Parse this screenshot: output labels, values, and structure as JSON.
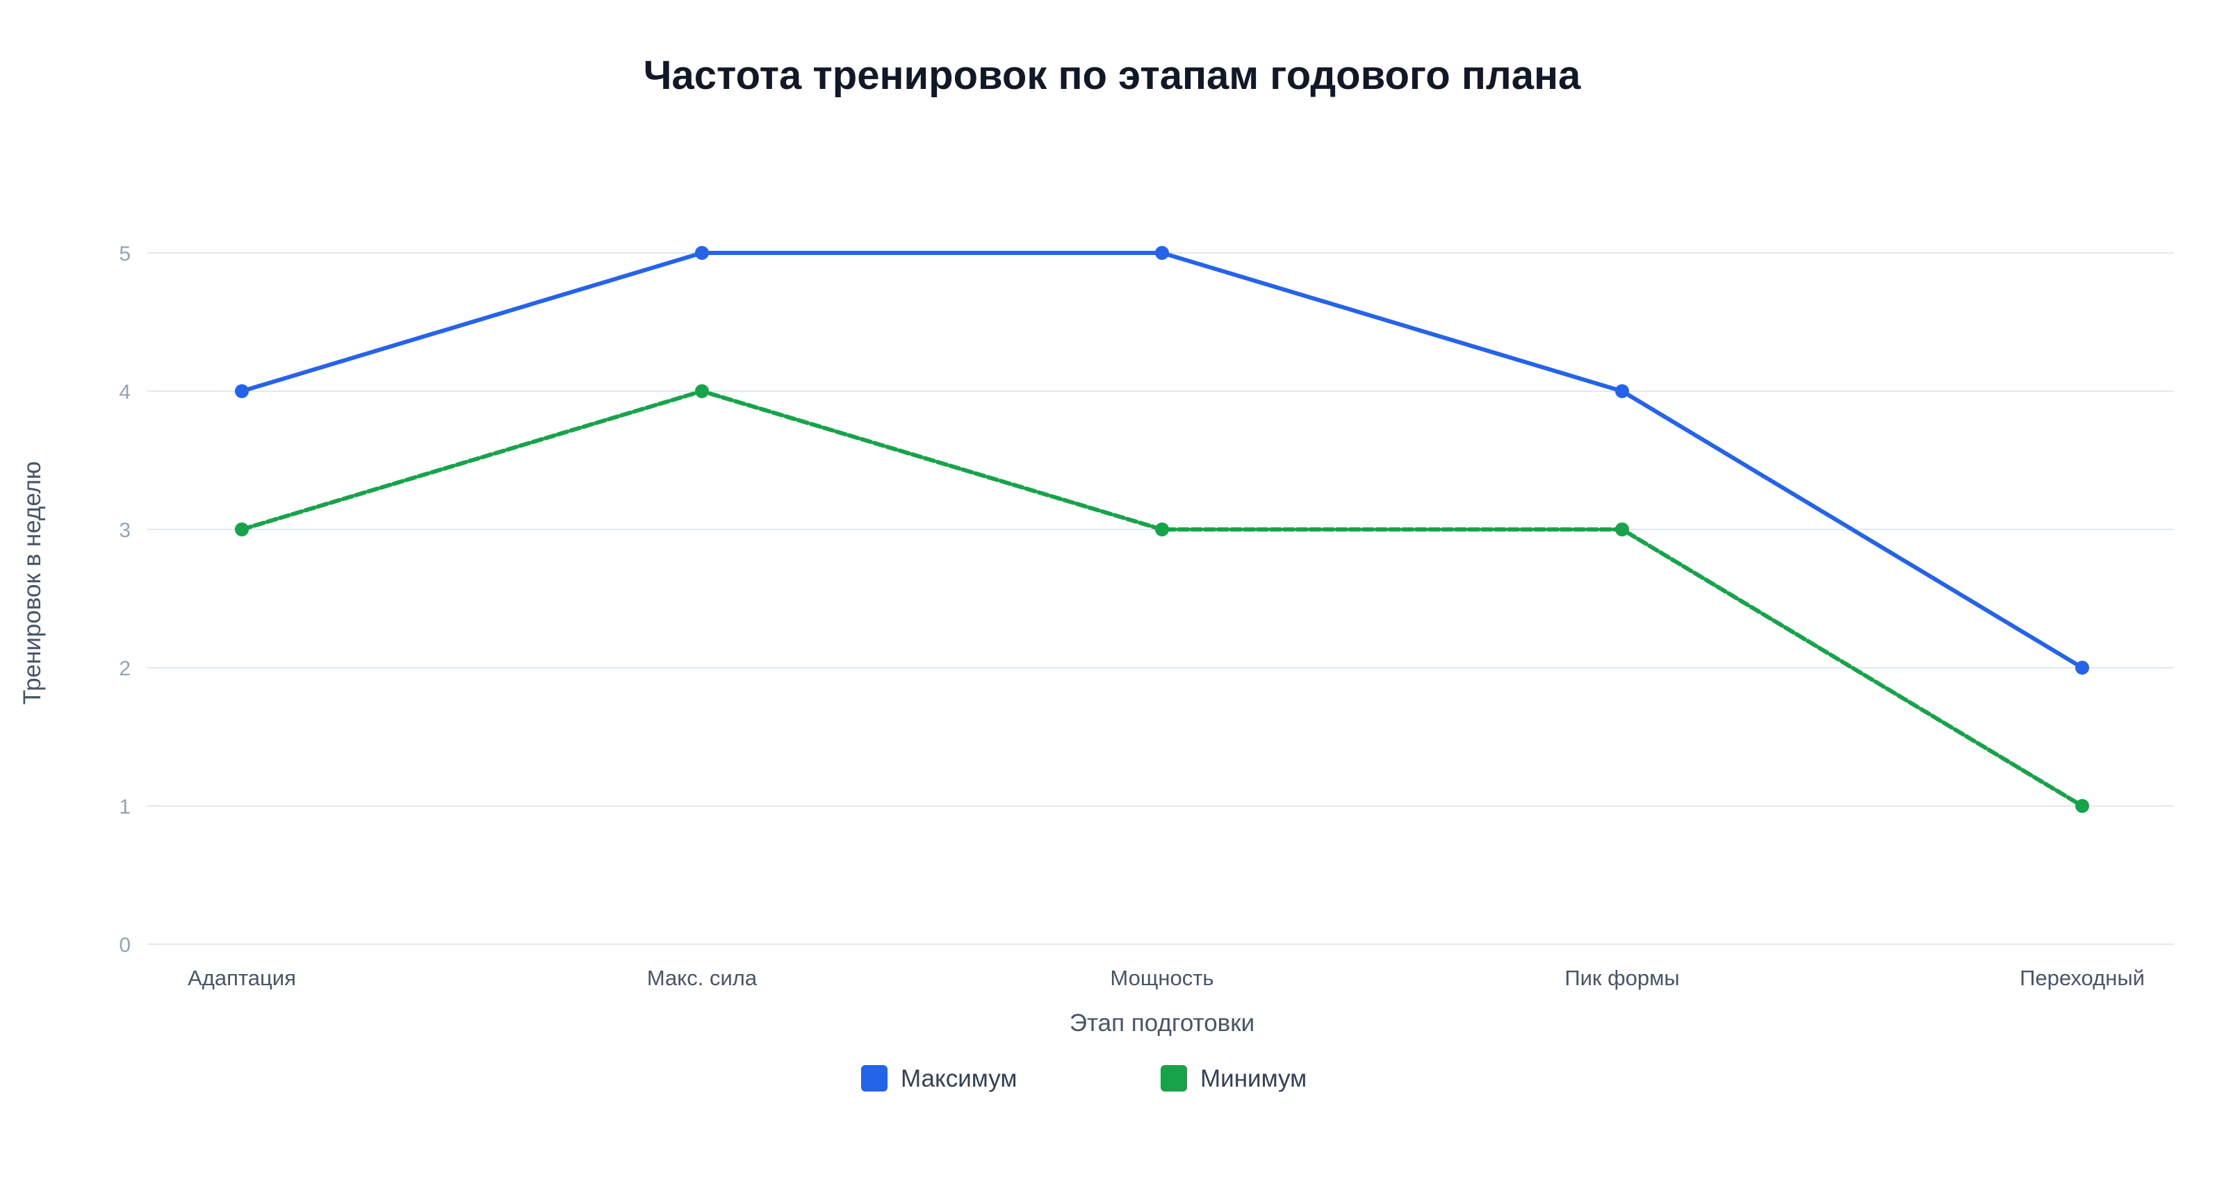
{
  "chart_data": {
    "type": "line",
    "title": "Частота тренировок по этапам годового плана",
    "xlabel": "Этап подготовки",
    "ylabel": "Тренировок в неделю",
    "categories": [
      "Адаптация",
      "Макс. сила",
      "Мощность",
      "Пик формы",
      "Переходный"
    ],
    "ylim": [
      0,
      5
    ],
    "yticks": [
      "0",
      "1",
      "2",
      "3",
      "4",
      "5"
    ],
    "grid": true,
    "legend_position": "bottom",
    "series": [
      {
        "name": "Максимум",
        "values": [
          4,
          5,
          5,
          4,
          2
        ],
        "color": "#2563eb",
        "dashed": false
      },
      {
        "name": "Минимум",
        "values": [
          3,
          4,
          3,
          3,
          1
        ],
        "color": "#16a34a",
        "dashed": true
      }
    ]
  }
}
